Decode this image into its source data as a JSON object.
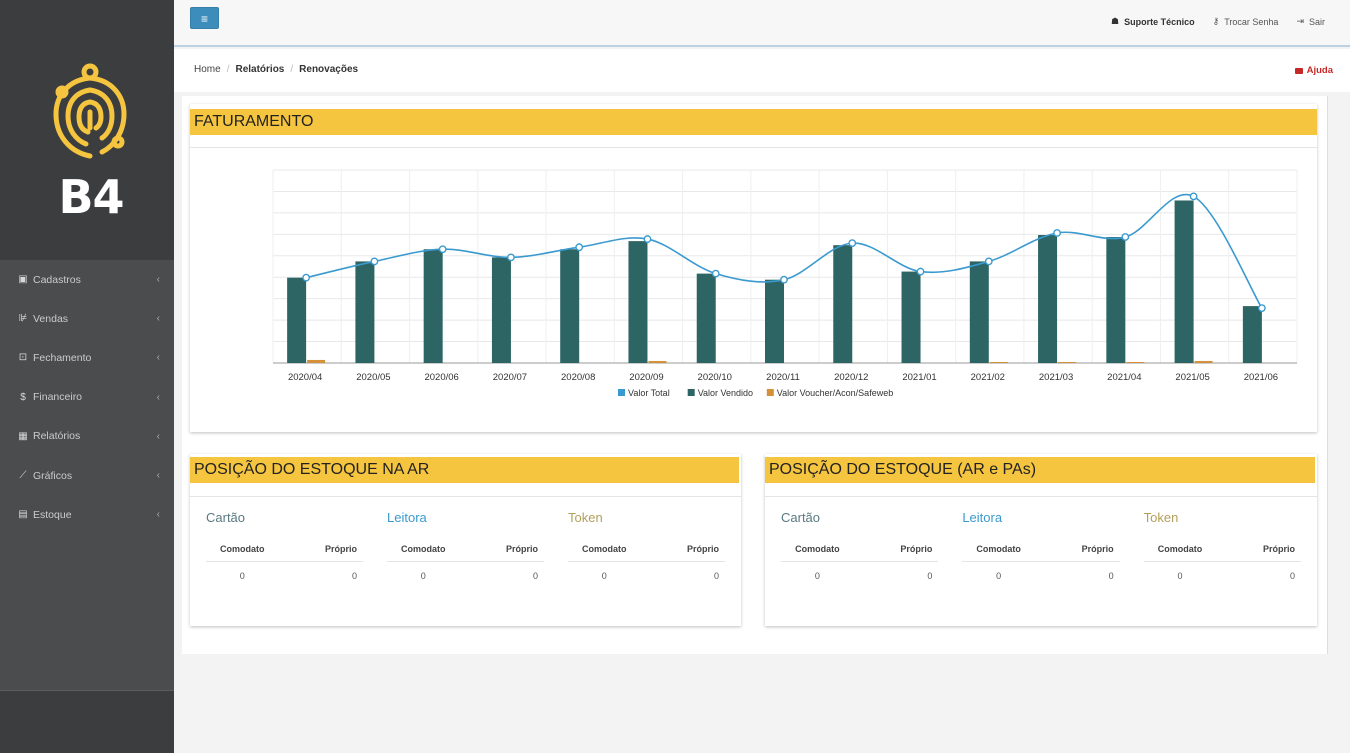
{
  "sidebar": {
    "brand": "B4",
    "items": [
      {
        "label": "Cadastros",
        "icon": "▣"
      },
      {
        "label": "Vendas",
        "icon": "⊯"
      },
      {
        "label": "Fechamento",
        "icon": "⊡"
      },
      {
        "label": "Financeiro",
        "icon": "$"
      },
      {
        "label": "Relatórios",
        "icon": "▦"
      },
      {
        "label": "Gráficos",
        "icon": "⟋"
      },
      {
        "label": "Estoque",
        "icon": "▤"
      }
    ]
  },
  "topbar": {
    "toggle_icon": "≡",
    "support": "Suporte Técnico",
    "change_password": "Trocar Senha",
    "exit": "Sair"
  },
  "breadcrumb": {
    "home": "Home",
    "section": "Relatórios",
    "page": "Renovações",
    "help": "Ajuda"
  },
  "billing_card": {
    "title": "FATURAMENTO"
  },
  "stock_ar": {
    "title": "POSIÇÃO DO ESTOQUE NA AR",
    "groups": [
      {
        "title": "Cartão",
        "col1": "Comodato",
        "col2": "Próprio",
        "v1": "0",
        "v2": "0"
      },
      {
        "title": "Leitora",
        "col1": "Comodato",
        "col2": "Próprio",
        "v1": "0",
        "v2": "0"
      },
      {
        "title": "Token",
        "col1": "Comodato",
        "col2": "Próprio",
        "v1": "0",
        "v2": "0"
      }
    ]
  },
  "stock_ar_pas": {
    "title": "POSIÇÃO DO ESTOQUE (AR e PAs)",
    "groups": [
      {
        "title": "Cartão",
        "col1": "Comodato",
        "col2": "Próprio",
        "v1": "0",
        "v2": "0"
      },
      {
        "title": "Leitora",
        "col1": "Comodato",
        "col2": "Próprio",
        "v1": "0",
        "v2": "0"
      },
      {
        "title": "Token",
        "col1": "Comodato",
        "col2": "Próprio",
        "v1": "0",
        "v2": "0"
      }
    ]
  },
  "colors": {
    "accent": "#f5c540",
    "line": "#3a9ad0",
    "bar": "#2d6564",
    "voucher": "#d4913a",
    "sidebar": "#4a4c4e"
  },
  "chart_data": {
    "type": "bar",
    "categories": [
      "2020/04",
      "2020/05",
      "2020/06",
      "2020/07",
      "2020/08",
      "2020/09",
      "2020/10",
      "2020/11",
      "2020/12",
      "2021/01",
      "2021/02",
      "2021/03",
      "2021/04",
      "2021/05",
      "2021/06"
    ],
    "series": [
      {
        "name": "Valor Total",
        "type": "line",
        "values": [
          42,
          50,
          56,
          52,
          57,
          61,
          44,
          41,
          59,
          45,
          50,
          64,
          62,
          82,
          27
        ]
      },
      {
        "name": "Valor Vendido",
        "type": "bar",
        "values": [
          42,
          50,
          56,
          52,
          56,
          60,
          44,
          41,
          58,
          45,
          50,
          63,
          62,
          80,
          28
        ]
      },
      {
        "name": "Valor Voucher/Acon/Safeweb",
        "type": "bar",
        "values": [
          1.5,
          0,
          0,
          0,
          0,
          1,
          0,
          0,
          0,
          0,
          0.5,
          0.5,
          0.5,
          1,
          0
        ]
      }
    ],
    "ylim": [
      0,
      95
    ],
    "grid": true,
    "legend": "bottom"
  }
}
